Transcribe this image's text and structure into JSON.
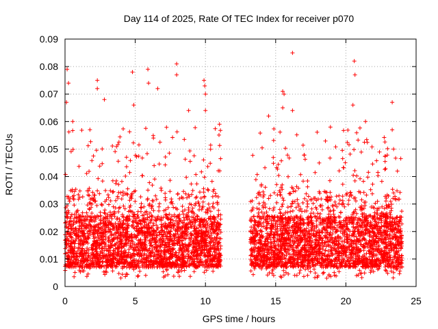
{
  "chart_data": {
    "type": "scatter",
    "title": "Day 114 of 2025, Rate Of TEC Index for receiver p070",
    "xlabel": "GPS time / hours",
    "ylabel": "ROTI / TECUs",
    "xlim": [
      0,
      25
    ],
    "ylim": [
      0,
      0.09
    ],
    "x_ticks": [
      "0",
      "5",
      "10",
      "15",
      "20",
      "25"
    ],
    "y_ticks": [
      "0",
      "0.01",
      "0.02",
      "0.03",
      "0.04",
      "0.05",
      "0.06",
      "0.07",
      "0.08",
      "0.09"
    ],
    "x_tick_values": [
      0,
      5,
      10,
      15,
      20,
      25
    ],
    "y_tick_values": [
      0,
      0.01,
      0.02,
      0.03,
      0.04,
      0.05,
      0.06,
      0.07,
      0.08,
      0.09
    ],
    "grid": true,
    "marker": "+",
    "series_color": "#ff0000",
    "data_gap_hours": [
      11.1,
      13.2
    ],
    "outliers": [
      {
        "x": 0.15,
        "y": 0.079
      },
      {
        "x": 0.25,
        "y": 0.074
      },
      {
        "x": 0.1,
        "y": 0.067
      },
      {
        "x": 0.55,
        "y": 0.06
      },
      {
        "x": 2.3,
        "y": 0.075
      },
      {
        "x": 2.3,
        "y": 0.072
      },
      {
        "x": 2.8,
        "y": 0.068
      },
      {
        "x": 4.8,
        "y": 0.078
      },
      {
        "x": 4.9,
        "y": 0.066
      },
      {
        "x": 5.9,
        "y": 0.079
      },
      {
        "x": 5.95,
        "y": 0.074
      },
      {
        "x": 6.6,
        "y": 0.072
      },
      {
        "x": 7.95,
        "y": 0.081
      },
      {
        "x": 7.95,
        "y": 0.077
      },
      {
        "x": 8.8,
        "y": 0.064
      },
      {
        "x": 9.9,
        "y": 0.075
      },
      {
        "x": 9.95,
        "y": 0.073
      },
      {
        "x": 10.0,
        "y": 0.064
      },
      {
        "x": 10.0,
        "y": 0.07
      },
      {
        "x": 11.0,
        "y": 0.059
      },
      {
        "x": 14.5,
        "y": 0.062
      },
      {
        "x": 15.5,
        "y": 0.071
      },
      {
        "x": 15.6,
        "y": 0.07
      },
      {
        "x": 15.5,
        "y": 0.065
      },
      {
        "x": 16.2,
        "y": 0.085
      },
      {
        "x": 16.2,
        "y": 0.064
      },
      {
        "x": 18.9,
        "y": 0.058
      },
      {
        "x": 20.6,
        "y": 0.082
      },
      {
        "x": 20.65,
        "y": 0.077
      },
      {
        "x": 20.5,
        "y": 0.066
      },
      {
        "x": 21.4,
        "y": 0.06
      },
      {
        "x": 23.3,
        "y": 0.067
      },
      {
        "x": 23.3,
        "y": 0.057
      }
    ],
    "segments": [
      {
        "x_start": 0.0,
        "x_end": 11.1,
        "base_min": 0.003,
        "base_max": 0.025,
        "spike_max": 0.058
      },
      {
        "x_start": 13.2,
        "x_end": 24.0,
        "base_min": 0.003,
        "base_max": 0.025,
        "spike_max": 0.058
      }
    ]
  }
}
